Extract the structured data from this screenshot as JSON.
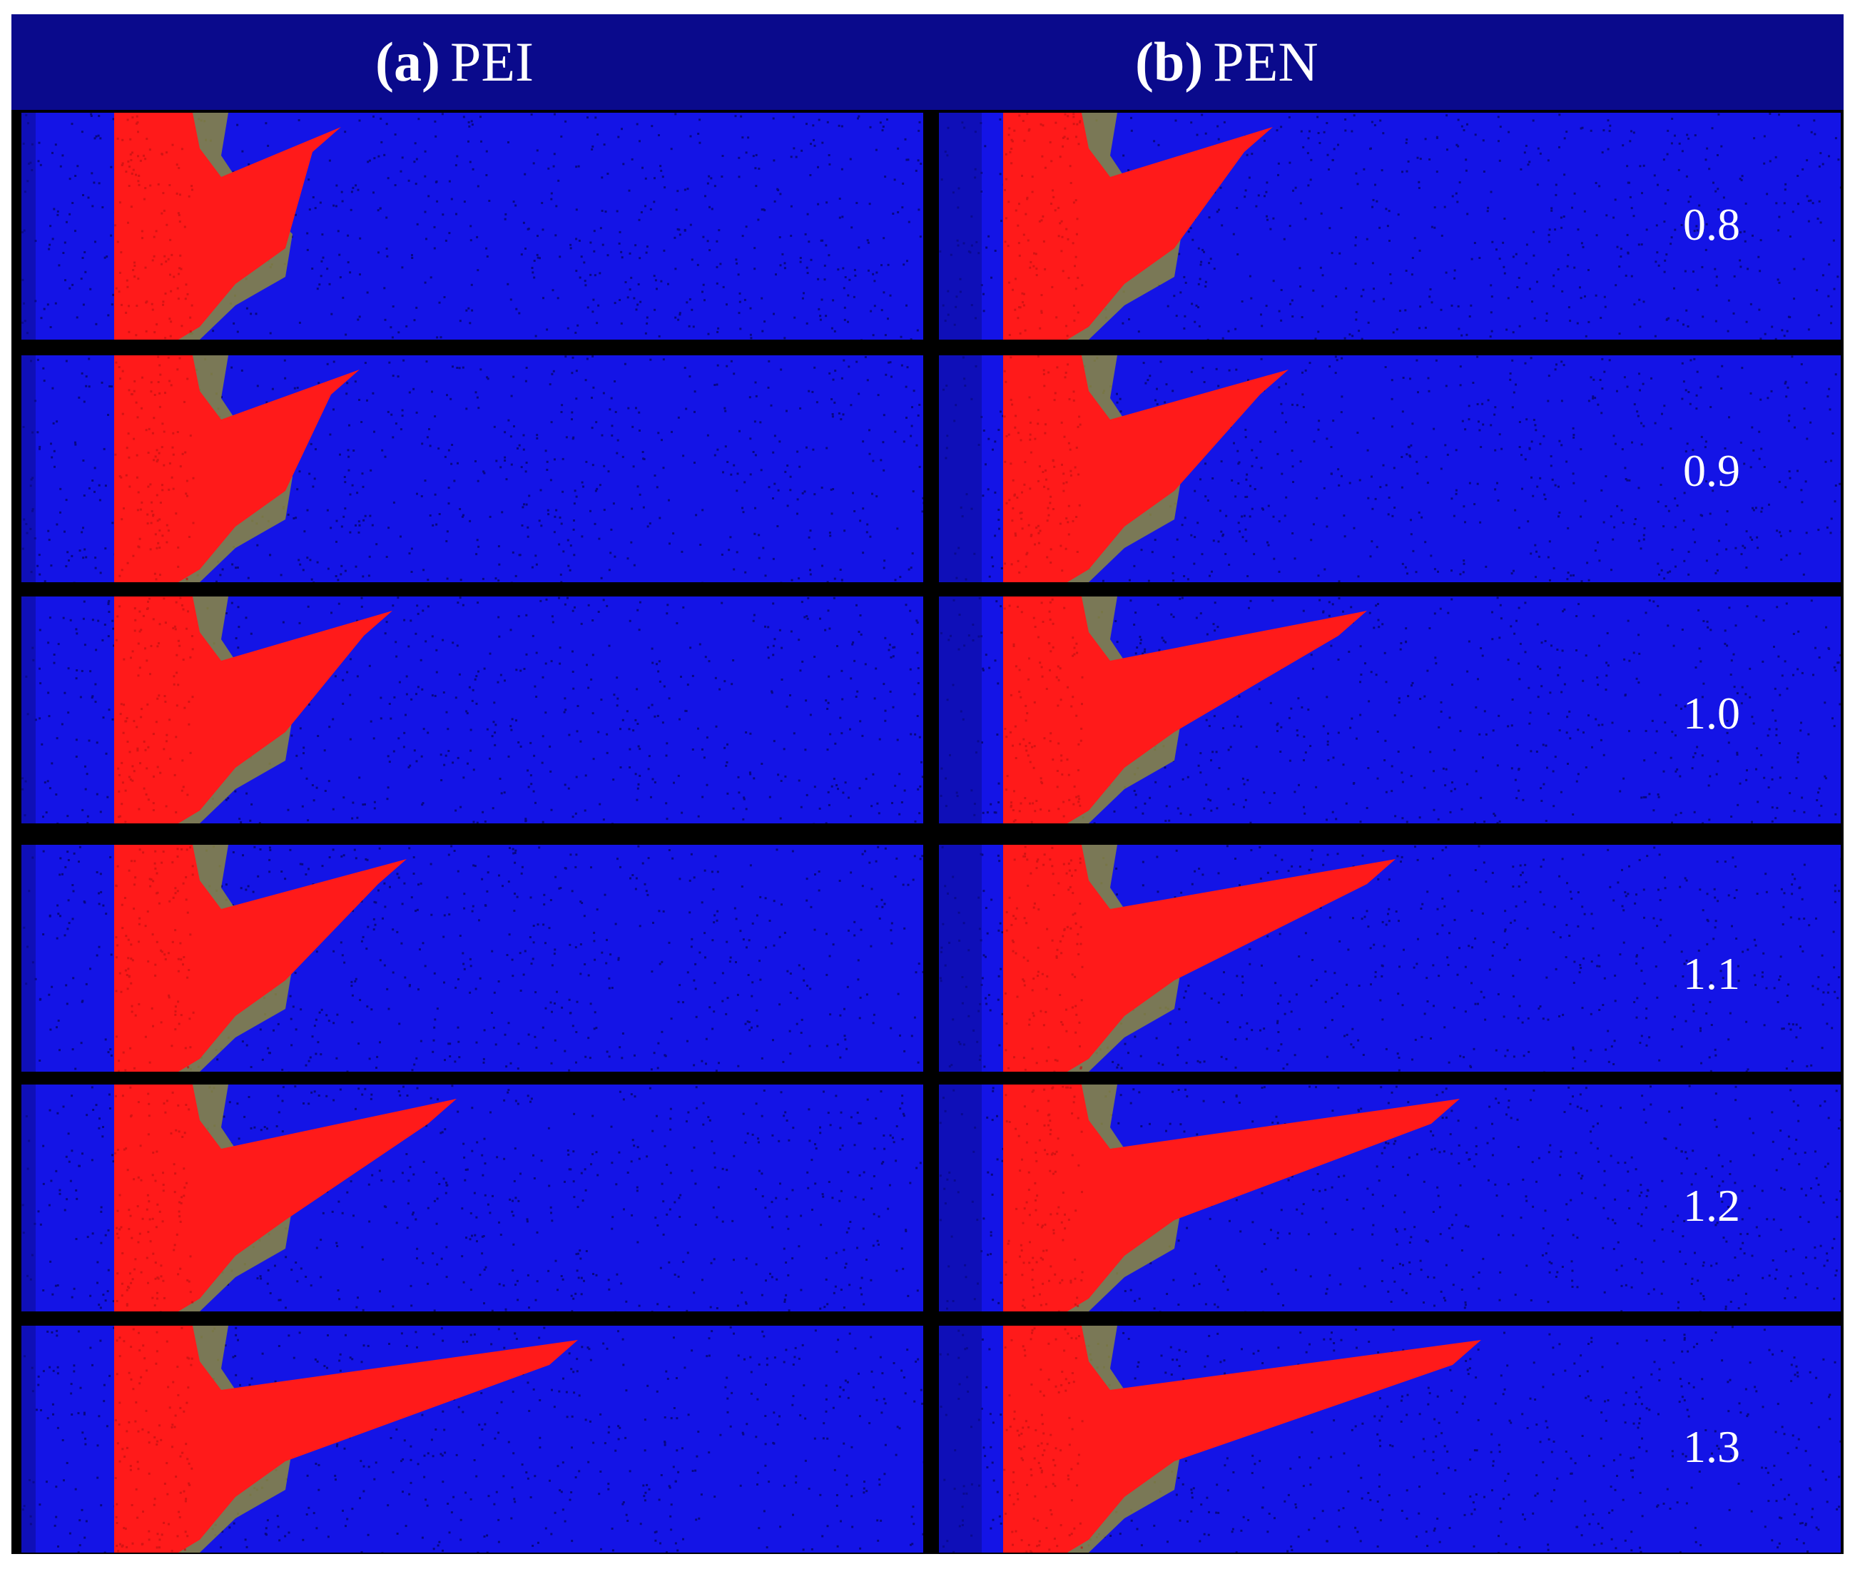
{
  "headers": [
    {
      "tag": "(a)",
      "name": "PEI"
    },
    {
      "tag": "(b)",
      "name": "PEN"
    }
  ],
  "row_labels": [
    "0.8",
    "0.9",
    "1.0",
    "1.1",
    "1.2",
    "1.3"
  ],
  "colors": {
    "header_band": "#0a0a8c",
    "background_matrix": "#1414e6",
    "projectile_red": "#ff1a1a",
    "interface_olive": "#8c8a3c",
    "separator": "#000000",
    "label_text": "#ffffff"
  }
}
